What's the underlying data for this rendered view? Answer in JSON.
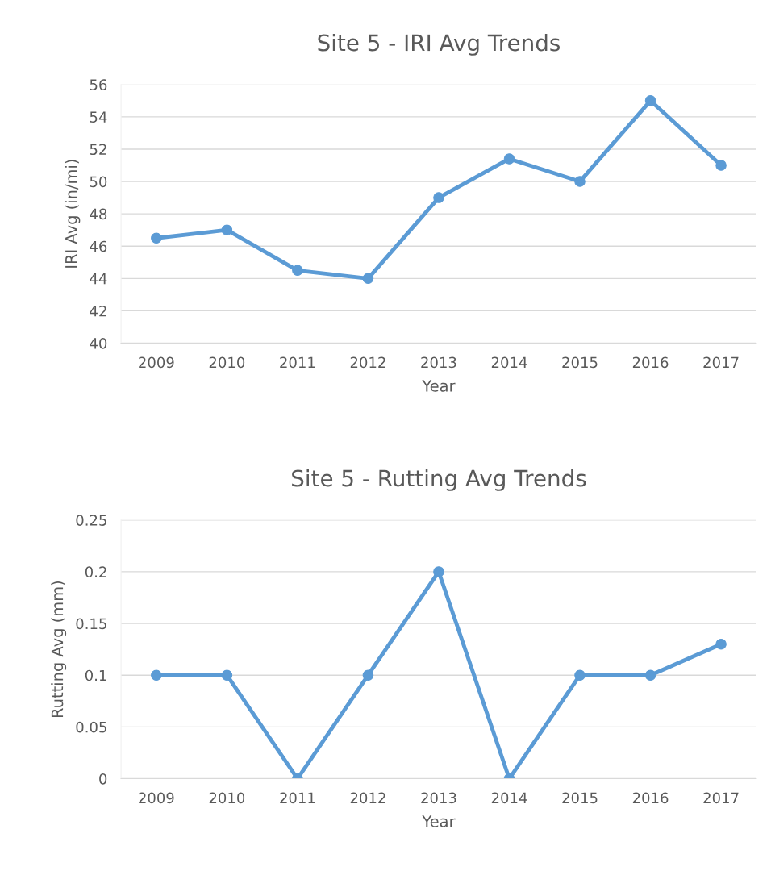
{
  "chart_data": [
    {
      "type": "line",
      "title": "Site 5 - IRI Avg Trends",
      "xlabel": "Year",
      "ylabel": "IRI Avg (in/mi)",
      "categories": [
        "2009",
        "2010",
        "2011",
        "2012",
        "2013",
        "2014",
        "2015",
        "2016",
        "2017"
      ],
      "series": [
        {
          "color": "#5b9bd5",
          "values": [
            46.5,
            47,
            44.5,
            44,
            49,
            51.4,
            50,
            55,
            51
          ]
        }
      ],
      "ylim": [
        40,
        56
      ],
      "yticks": [
        40,
        42,
        44,
        46,
        48,
        50,
        52,
        54,
        56
      ],
      "grid": "y",
      "marker": "circle",
      "line_style": "solid"
    },
    {
      "type": "line",
      "title": "Site 5 - Rutting Avg Trends",
      "xlabel": "Year",
      "ylabel": "Rutting Avg (mm)",
      "categories": [
        "2009",
        "2010",
        "2011",
        "2012",
        "2013",
        "2014",
        "2015",
        "2016",
        "2017"
      ],
      "series": [
        {
          "color": "#5b9bd5",
          "values": [
            0.1,
            0.1,
            0,
            0.1,
            0.2,
            0,
            0.1,
            0.1,
            0.13
          ]
        }
      ],
      "ylim": [
        0,
        0.25
      ],
      "yticks": [
        0,
        0.05,
        0.1,
        0.15,
        0.2,
        0.25
      ],
      "grid": "y",
      "marker": "circle",
      "line_style": "solid"
    }
  ]
}
